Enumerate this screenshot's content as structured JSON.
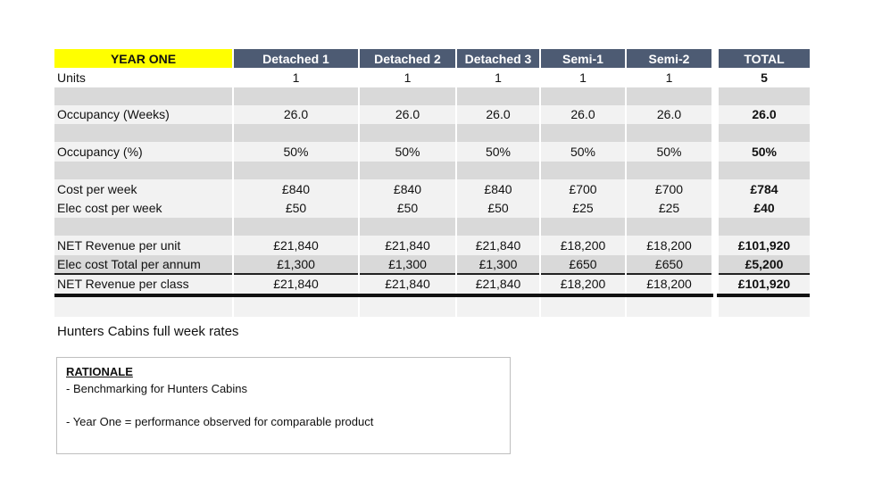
{
  "table": {
    "headers": [
      "YEAR ONE",
      "Detached 1",
      "Detached 2",
      "Detached 3",
      "Semi-1",
      "Semi-2",
      "TOTAL"
    ],
    "units": {
      "label": "Units",
      "values": [
        "1",
        "1",
        "1",
        "1",
        "1"
      ],
      "total": "5"
    },
    "occupancy_weeks": {
      "label": "Occupancy (Weeks)",
      "values": [
        "26.0",
        "26.0",
        "26.0",
        "26.0",
        "26.0"
      ],
      "total": "26.0"
    },
    "occupancy_pct": {
      "label": "Occupancy (%)",
      "values": [
        "50%",
        "50%",
        "50%",
        "50%",
        "50%"
      ],
      "total": "50%"
    },
    "cost_per_week": {
      "label": "Cost per week",
      "values": [
        "£840",
        "£840",
        "£840",
        "£700",
        "£700"
      ],
      "total": "£784"
    },
    "elec_cost_week": {
      "label": "Elec cost per week",
      "values": [
        "£50",
        "£50",
        "£50",
        "£25",
        "£25"
      ],
      "total": "£40"
    },
    "net_rev_unit": {
      "label": "NET Revenue per unit",
      "values": [
        "£21,840",
        "£21,840",
        "£21,840",
        "£18,200",
        "£18,200"
      ],
      "total": "£101,920"
    },
    "elec_total": {
      "label": "Elec cost Total per annum",
      "values": [
        "£1,300",
        "£1,300",
        "£1,300",
        "£650",
        "£650"
      ],
      "total": "£5,200"
    },
    "net_rev_class": {
      "label": "NET Revenue per class",
      "values": [
        "£21,840",
        "£21,840",
        "£21,840",
        "£18,200",
        "£18,200"
      ],
      "total": "£101,920"
    }
  },
  "note": "Hunters Cabins full week rates",
  "rationale": {
    "title": "RATIONALE",
    "line1": "- Benchmarking for Hunters Cabins",
    "line2": "- Year One = performance observed for comparable product"
  },
  "colors": {
    "header_bg": "#4d5b73",
    "year_bg": "#ffff00",
    "light_row": "#f2f2f2",
    "gray_row": "#d9d9d9"
  }
}
